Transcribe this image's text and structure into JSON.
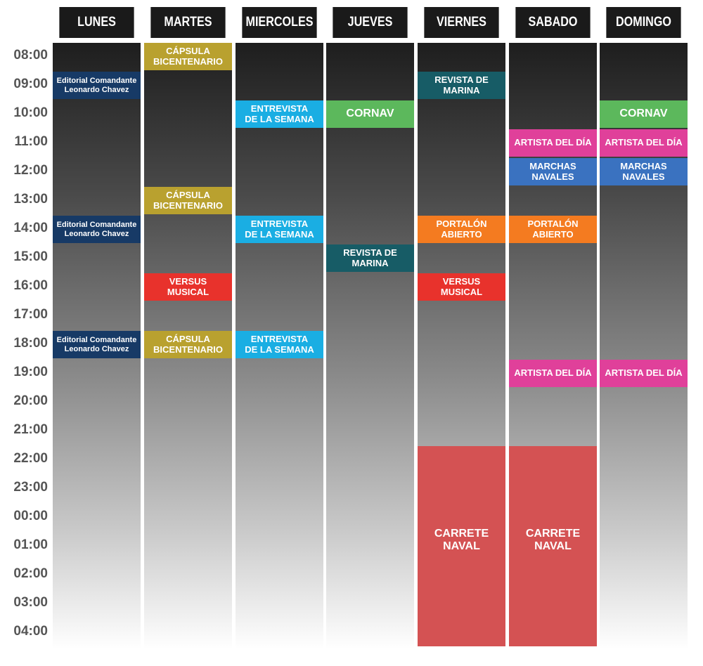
{
  "days": [
    "LUNES",
    "MARTES",
    "MIERCOLES",
    "JUEVES",
    "VIERNES",
    "SABADO",
    "DOMINGO"
  ],
  "hours": [
    "08:00",
    "09:00",
    "10:00",
    "11:00",
    "12:00",
    "13:00",
    "14:00",
    "15:00",
    "16:00",
    "17:00",
    "18:00",
    "19:00",
    "20:00",
    "21:00",
    "22:00",
    "23:00",
    "00:00",
    "01:00",
    "02:00",
    "03:00",
    "04:00"
  ],
  "colors": {
    "editorial": "#173a66",
    "capsula": "#b9a12f",
    "entrevista": "#1aaee3",
    "cornav": "#5cb85c",
    "revista": "#175c66",
    "versus": "#e8322c",
    "portalon": "#f47b20",
    "artista": "#e0409a",
    "marchas": "#3a72c0",
    "carrete": "#d45253"
  },
  "events": [
    {
      "day": 0,
      "start": 9.0,
      "end": 10.0,
      "label": "Editorial Comandante\nLeonardo Chavez",
      "color": "editorial",
      "size": "small"
    },
    {
      "day": 0,
      "start": 14.0,
      "end": 15.0,
      "label": "Editorial Comandante\nLeonardo Chavez",
      "color": "editorial",
      "size": "small"
    },
    {
      "day": 0,
      "start": 18.0,
      "end": 19.0,
      "label": "Editorial Comandante\nLeonardo Chavez",
      "color": "editorial",
      "size": "small"
    },
    {
      "day": 1,
      "start": 8.0,
      "end": 9.0,
      "label": "CÁPSULA\nBICENTENARIO",
      "color": "capsula",
      "size": "normal"
    },
    {
      "day": 1,
      "start": 13.0,
      "end": 14.0,
      "label": "CÁPSULA\nBICENTENARIO",
      "color": "capsula",
      "size": "normal"
    },
    {
      "day": 1,
      "start": 16.0,
      "end": 17.0,
      "label": "VERSUS\nMUSICAL",
      "color": "versus",
      "size": "normal"
    },
    {
      "day": 1,
      "start": 18.0,
      "end": 19.0,
      "label": "CÁPSULA\nBICENTENARIO",
      "color": "capsula",
      "size": "normal"
    },
    {
      "day": 2,
      "start": 10.0,
      "end": 11.0,
      "label": "ENTREVISTA\nDE LA SEMANA",
      "color": "entrevista",
      "size": "normal"
    },
    {
      "day": 2,
      "start": 14.0,
      "end": 15.0,
      "label": "ENTREVISTA\nDE LA SEMANA",
      "color": "entrevista",
      "size": "normal"
    },
    {
      "day": 2,
      "start": 18.0,
      "end": 19.0,
      "label": "ENTREVISTA\nDE LA SEMANA",
      "color": "entrevista",
      "size": "normal"
    },
    {
      "day": 3,
      "start": 10.0,
      "end": 11.0,
      "label": "CORNAV",
      "color": "cornav",
      "size": "large"
    },
    {
      "day": 3,
      "start": 15.0,
      "end": 16.0,
      "label": "REVISTA DE MARINA",
      "color": "revista",
      "size": "normal"
    },
    {
      "day": 4,
      "start": 9.0,
      "end": 10.0,
      "label": "REVISTA DE MARINA",
      "color": "revista",
      "size": "normal"
    },
    {
      "day": 4,
      "start": 14.0,
      "end": 15.0,
      "label": "PORTALÓN ABIERTO",
      "color": "portalon",
      "size": "normal"
    },
    {
      "day": 4,
      "start": 16.0,
      "end": 17.0,
      "label": "VERSUS\nMUSICAL",
      "color": "versus",
      "size": "normal"
    },
    {
      "day": 4,
      "start": 22.0,
      "end": 29.0,
      "label": "CARRETE\nNAVAL",
      "color": "carrete",
      "size": "large"
    },
    {
      "day": 5,
      "start": 11.0,
      "end": 12.0,
      "label": "ARTISTA DEL DÍA",
      "color": "artista",
      "size": "normal"
    },
    {
      "day": 5,
      "start": 12.0,
      "end": 13.0,
      "label": "MARCHAS\nNAVALES",
      "color": "marchas",
      "size": "normal"
    },
    {
      "day": 5,
      "start": 14.0,
      "end": 15.0,
      "label": "PORTALÓN ABIERTO",
      "color": "portalon",
      "size": "normal"
    },
    {
      "day": 5,
      "start": 19.0,
      "end": 20.0,
      "label": "ARTISTA DEL DÍA",
      "color": "artista",
      "size": "normal"
    },
    {
      "day": 5,
      "start": 22.0,
      "end": 29.0,
      "label": "CARRETE\nNAVAL",
      "color": "carrete",
      "size": "large"
    },
    {
      "day": 6,
      "start": 10.0,
      "end": 11.0,
      "label": "CORNAV",
      "color": "cornav",
      "size": "large"
    },
    {
      "day": 6,
      "start": 11.0,
      "end": 12.0,
      "label": "ARTISTA DEL DÍA",
      "color": "artista",
      "size": "normal"
    },
    {
      "day": 6,
      "start": 12.0,
      "end": 13.0,
      "label": "MARCHAS\nNAVALES",
      "color": "marchas",
      "size": "normal"
    },
    {
      "day": 6,
      "start": 19.0,
      "end": 20.0,
      "label": "ARTISTA DEL DÍA",
      "color": "artista",
      "size": "normal"
    }
  ]
}
